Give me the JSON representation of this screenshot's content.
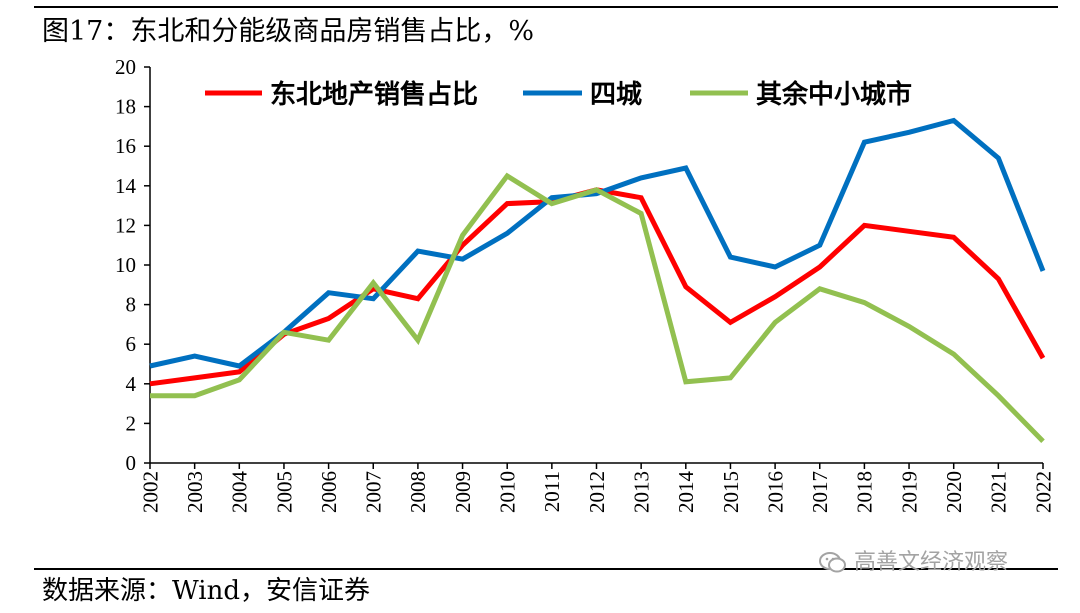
{
  "figure_title": "图17：东北和分能级商品房销售占比，%",
  "source": "数据来源：Wind，安信证券",
  "watermark": {
    "text": "高善文经济观察",
    "icon": "wechat-bubble-icon"
  },
  "colors": {
    "northeast": "#ff0000",
    "four_cities": "#0070c0",
    "other_small_cities": "#92c050",
    "axis": "#000000"
  },
  "chart_data": {
    "type": "line",
    "title": "东北和分能级商品房销售占比，%",
    "x": [
      "2002",
      "2003",
      "2004",
      "2005",
      "2006",
      "2007",
      "2008",
      "2009",
      "2010",
      "2011",
      "2012",
      "2013",
      "2014",
      "2015",
      "2016",
      "2017",
      "2018",
      "2019",
      "2020",
      "2021",
      "2022"
    ],
    "ylim": [
      0,
      20
    ],
    "yticks": [
      0,
      2,
      4,
      6,
      8,
      10,
      12,
      14,
      16,
      18,
      20
    ],
    "grid": false,
    "legend_position": "top",
    "series": [
      {
        "key": "northeast",
        "name": "东北地产销售占比",
        "values": [
          4.0,
          4.3,
          4.6,
          6.5,
          7.3,
          8.8,
          8.3,
          11.0,
          13.1,
          13.2,
          13.8,
          13.4,
          8.9,
          7.1,
          8.4,
          9.9,
          12.0,
          11.7,
          11.4,
          9.3,
          5.3
        ]
      },
      {
        "key": "four_cities",
        "name": "四城",
        "values": [
          4.9,
          5.4,
          4.9,
          6.6,
          8.6,
          8.3,
          10.7,
          10.3,
          11.6,
          13.4,
          13.6,
          14.4,
          14.9,
          10.4,
          9.9,
          11.0,
          16.2,
          16.7,
          17.3,
          15.4,
          9.7
        ]
      },
      {
        "key": "other_small_cities",
        "name": "其余中小城市",
        "values": [
          3.4,
          3.4,
          4.2,
          6.6,
          6.2,
          9.1,
          6.2,
          11.5,
          14.5,
          13.1,
          13.8,
          12.6,
          4.1,
          4.3,
          7.1,
          8.8,
          8.1,
          6.9,
          5.5,
          3.4,
          1.1
        ]
      }
    ]
  }
}
